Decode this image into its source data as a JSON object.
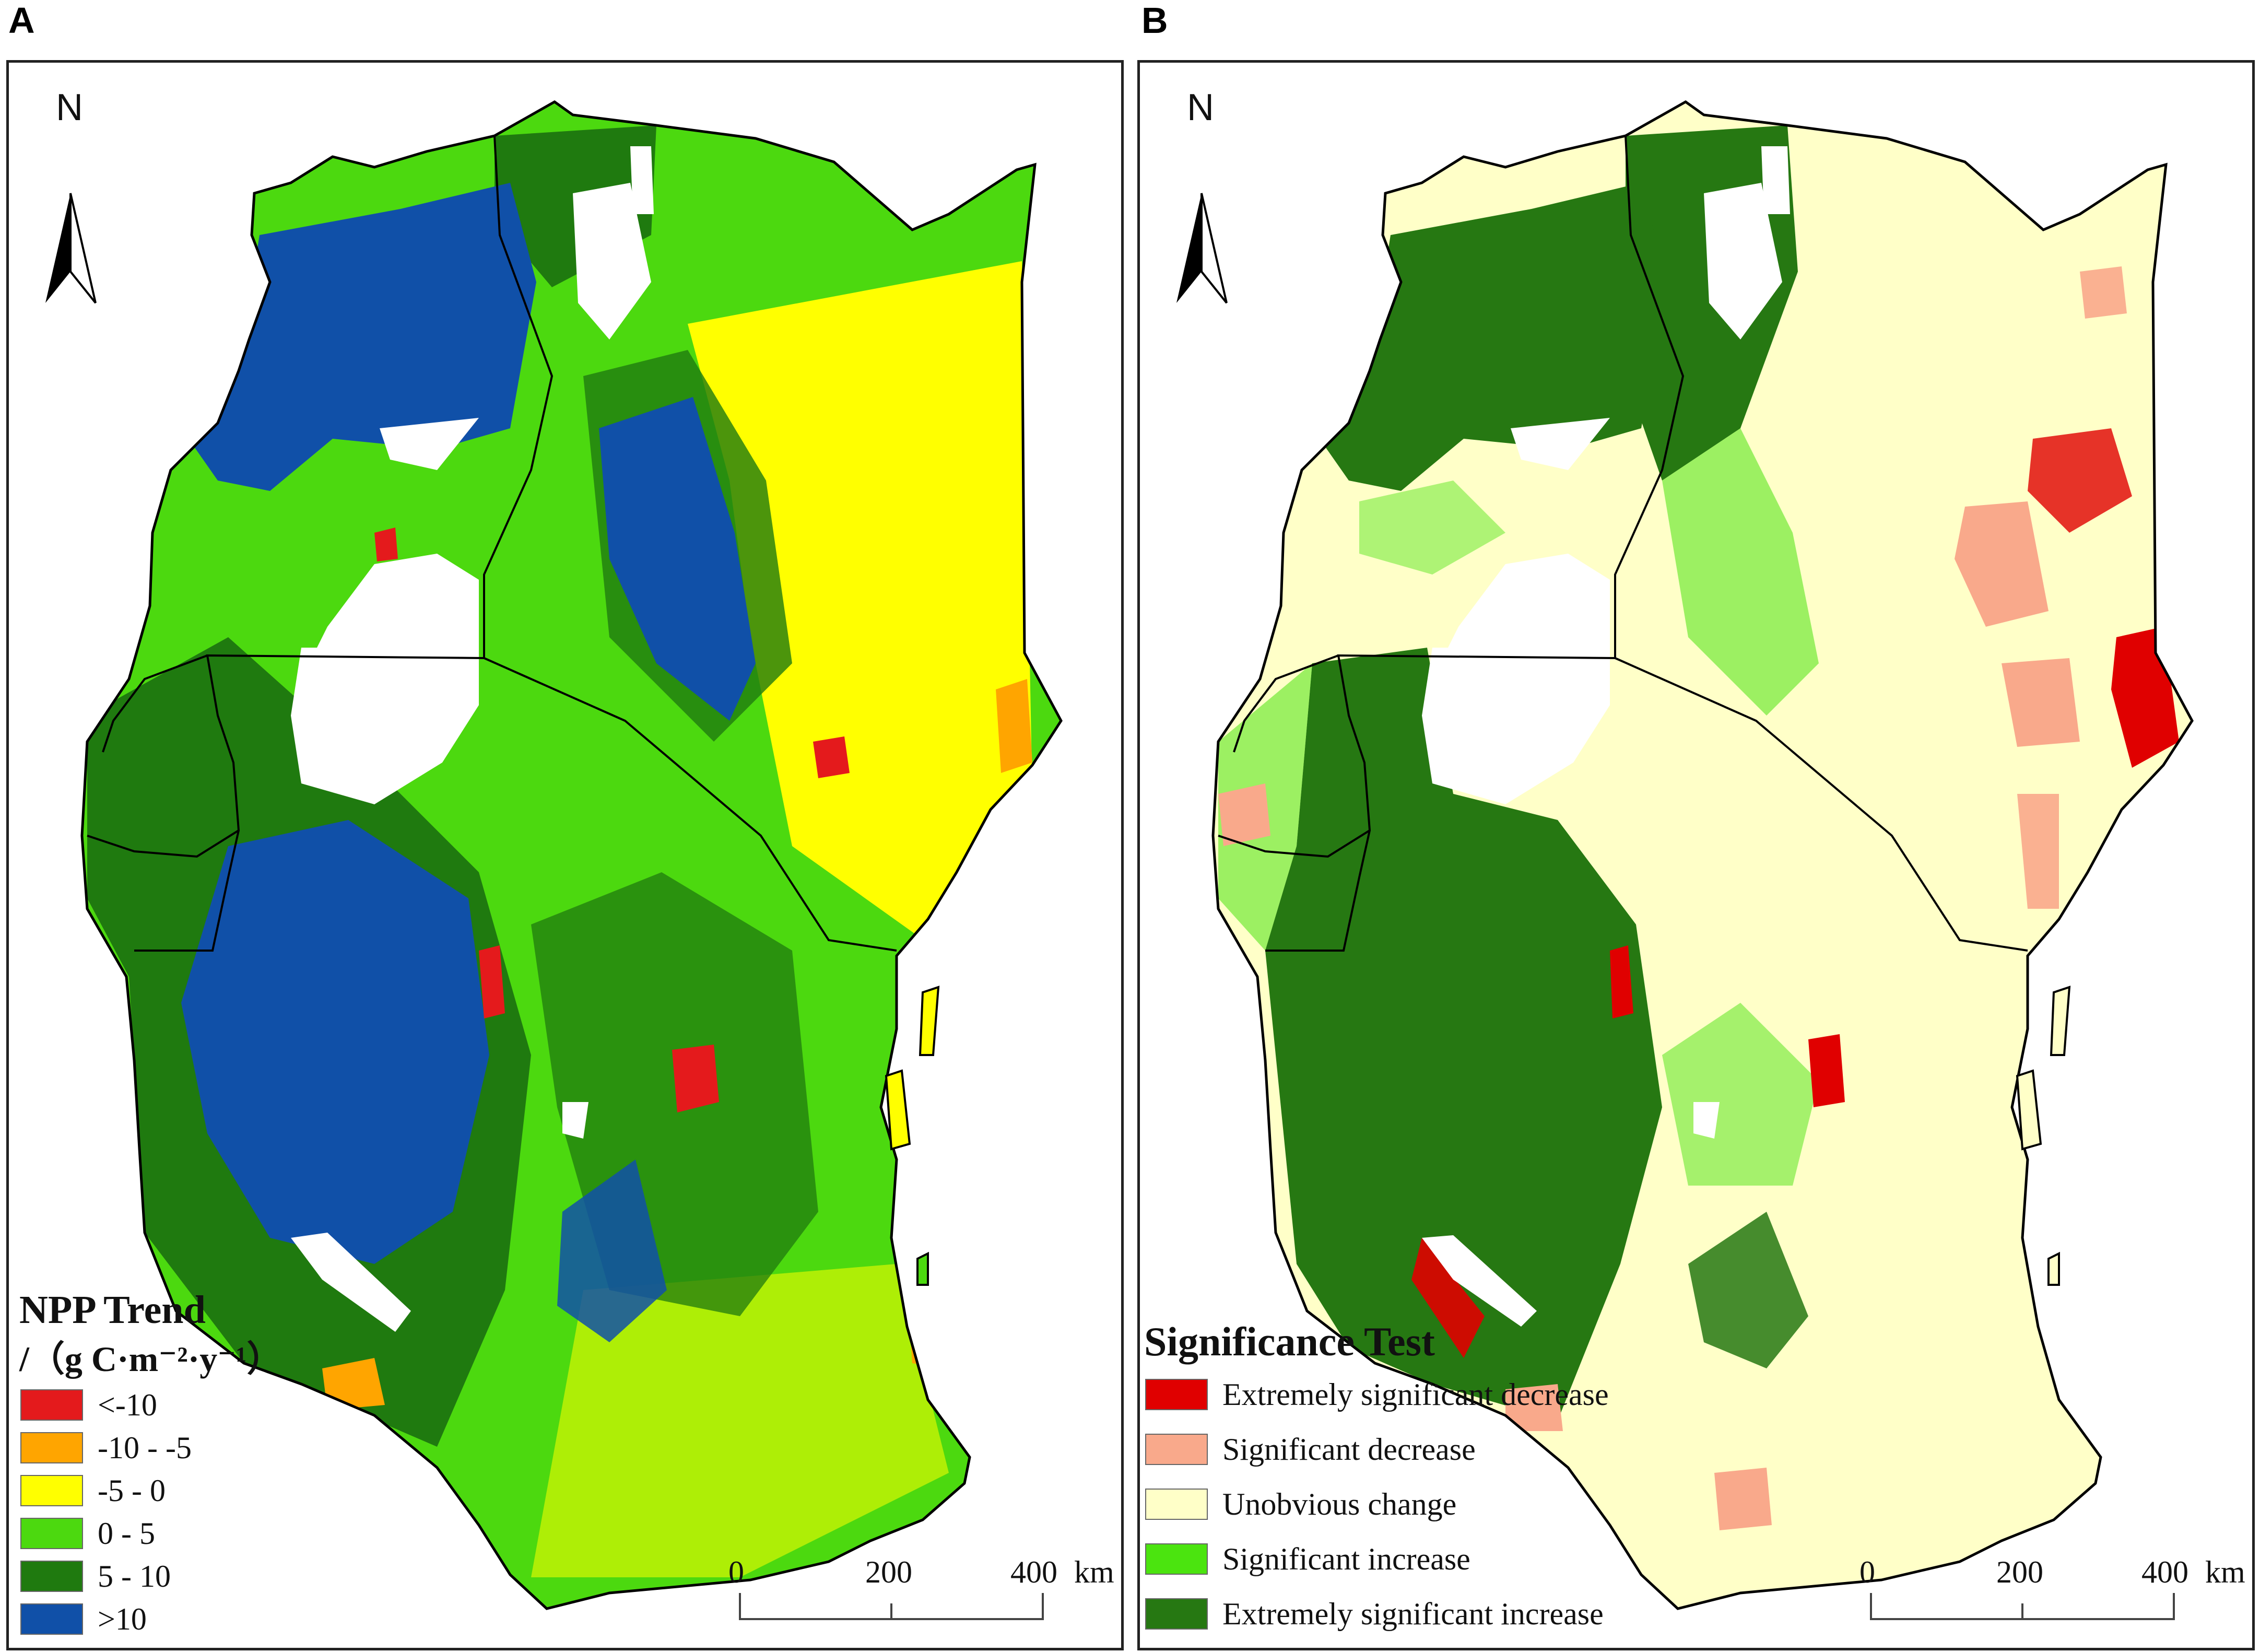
{
  "panels": [
    {
      "letter": "A",
      "north": "N",
      "legend": {
        "title": "NPP Trend",
        "subtitle": "/（g C·m⁻²·y⁻¹）",
        "items": [
          {
            "label": "<-10",
            "color": "#e41a1c"
          },
          {
            "label": "-10 - -5",
            "color": "#ffa500"
          },
          {
            "label": "-5 - 0",
            "color": "#ffff00"
          },
          {
            "label": "0 - 5",
            "color": "#4cd90f"
          },
          {
            "label": "5 - 10",
            "color": "#1f7a0f"
          },
          {
            "label": ">10",
            "color": "#1050a8"
          }
        ]
      },
      "scale": {
        "ticks": [
          "0",
          "200",
          "400"
        ],
        "unit": "km"
      }
    },
    {
      "letter": "B",
      "north": "N",
      "legend": {
        "title": "Significance Test",
        "items": [
          {
            "label": "Extremely significant decrease",
            "color": "#e00000"
          },
          {
            "label": "Significant decrease",
            "color": "#f9a98b"
          },
          {
            "label": "Unobvious change",
            "color": "#ffffc8"
          },
          {
            "label": "Significant increase",
            "color": "#4be40f"
          },
          {
            "label": "Extremely significant increase",
            "color": "#267812"
          }
        ]
      },
      "scale": {
        "ticks": [
          "0",
          "200",
          "400"
        ],
        "unit": "km"
      }
    }
  ]
}
